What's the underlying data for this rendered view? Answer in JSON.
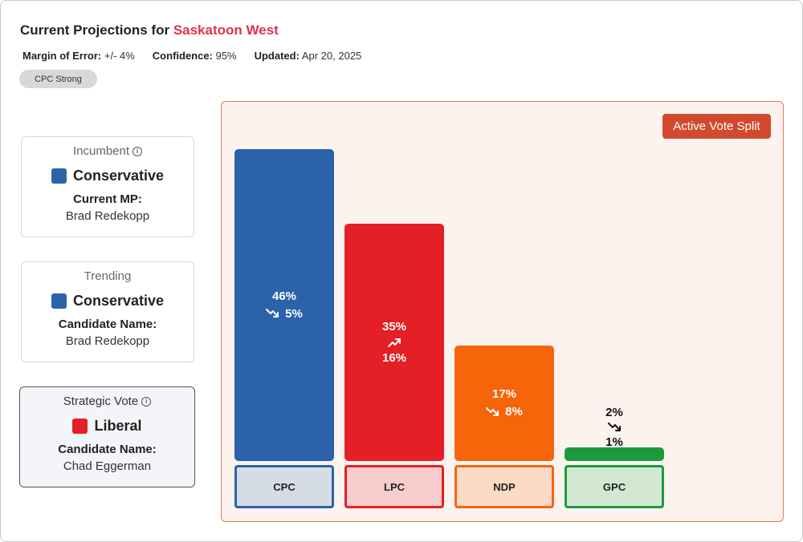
{
  "header": {
    "title_prefix": "Current Projections for ",
    "riding": "Saskatoon West",
    "margin_label": "Margin of Error:",
    "margin_value": "+/- 4%",
    "confidence_label": "Confidence:",
    "confidence_value": "95%",
    "updated_label": "Updated:",
    "updated_value": "Apr 20, 2025",
    "badge": "CPC Strong"
  },
  "cards": {
    "incumbent": {
      "title": "Incumbent",
      "party": "Conservative",
      "party_color": "#2b63ab",
      "sub_label": "Current MP:",
      "sub_value": "Brad Redekopp"
    },
    "trending": {
      "title": "Trending",
      "party": "Conservative",
      "party_color": "#2b63ab",
      "sub_label": "Candidate Name:",
      "sub_value": "Brad Redekopp"
    },
    "strategic": {
      "title": "Strategic Vote",
      "party": "Liberal",
      "party_color": "#e41f26",
      "sub_label": "Candidate Name:",
      "sub_value": "Chad Eggerman"
    }
  },
  "panel": {
    "button_label": "Active Vote Split"
  },
  "chart_data": {
    "type": "bar",
    "categories": [
      "CPC",
      "LPC",
      "NDP",
      "GPC"
    ],
    "values": [
      46,
      35,
      17,
      2
    ],
    "value_labels": [
      "46%",
      "35%",
      "17%",
      "2%"
    ],
    "trend_directions": [
      "down",
      "up",
      "down",
      "down"
    ],
    "trend_labels": [
      "5%",
      "16%",
      "8%",
      "1%"
    ],
    "colors": [
      "#2b63ab",
      "#e41f26",
      "#f6650a",
      "#1e9a3e"
    ],
    "label_backgrounds": [
      "#d6dce6",
      "#f7cccc",
      "#fcdac6",
      "#d2e8d2"
    ],
    "ylim": [
      0,
      46
    ],
    "title": "",
    "xlabel": "",
    "ylabel": ""
  }
}
